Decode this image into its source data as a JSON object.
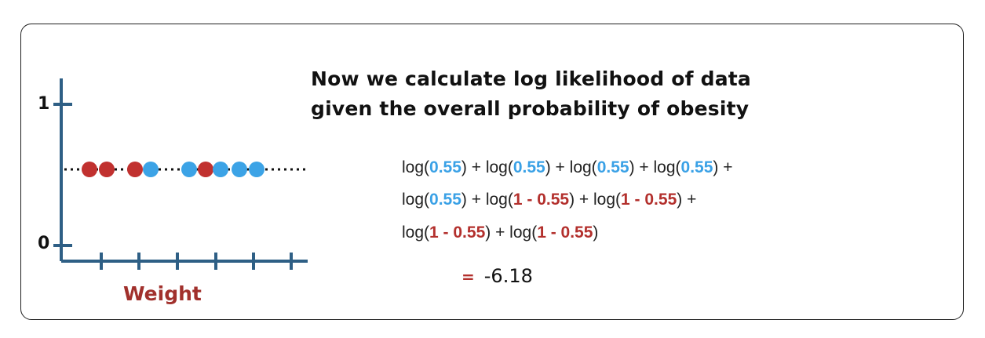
{
  "title_lines": [
    "Now we calculate log likelihood of data",
    "given the overall probability of obesity"
  ],
  "plot": {
    "y_labels": {
      "top": "1",
      "bottom": "0"
    },
    "x_label": "Weight",
    "probability_line": 0.55,
    "points": [
      {
        "class": "red"
      },
      {
        "class": "red"
      },
      {
        "class": "red"
      },
      {
        "class": "blue"
      },
      {
        "class": "blue"
      },
      {
        "class": "red"
      },
      {
        "class": "blue"
      },
      {
        "class": "blue"
      },
      {
        "class": "blue"
      }
    ],
    "colors": {
      "axis": "#2e5f85",
      "red": "#c1312f",
      "blue": "#3ca3e6",
      "line": "#111111"
    }
  },
  "equation": {
    "line1": [
      "log(",
      "0.55",
      ") + log(",
      "0.55",
      ") + log(",
      "0.55",
      ") + log(",
      "0.55",
      ") +"
    ],
    "line2": [
      "log(",
      "0.55",
      ") + log(",
      "1 - 0.55",
      ") + log(",
      "1 - 0.55",
      ") +"
    ],
    "line3": [
      "log(",
      "1 - 0.55",
      ") + log(",
      "1 - 0.55",
      ")"
    ],
    "result_equals": "=",
    "result_value": "-6.18"
  }
}
